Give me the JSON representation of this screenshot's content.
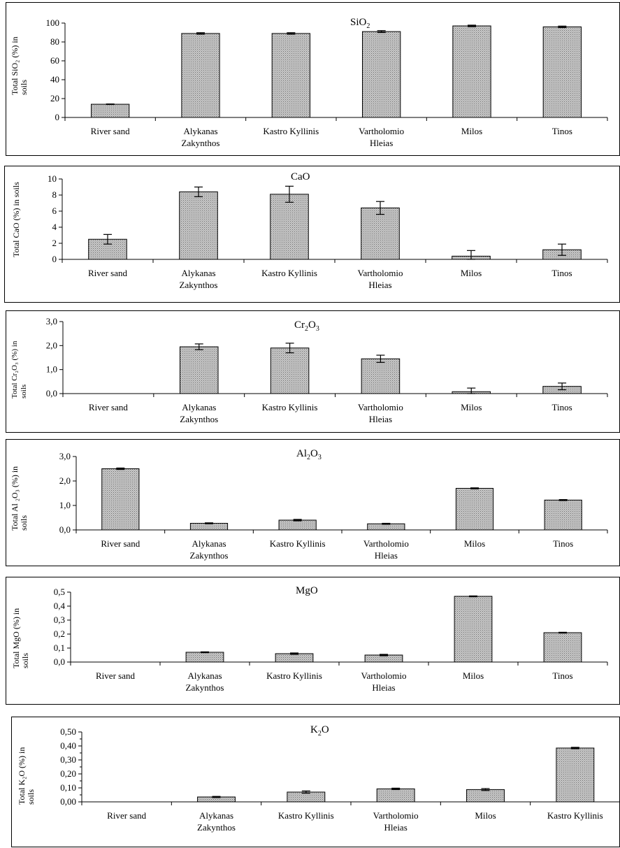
{
  "colors": {
    "bar_fill": "#c8c8c8",
    "bar_stroke": "#000000",
    "axis": "#000000"
  },
  "chart_data": [
    {
      "type": "bar",
      "title": "SiO2",
      "title_base": "SiO",
      "title_sub": "2",
      "ylabel_lines": [
        "Total  SiO₂ (%) in",
        "soils"
      ],
      "categories": [
        [
          "River sand"
        ],
        [
          "Alykanas",
          "Zakynthos"
        ],
        [
          "Kastro Kyllinis"
        ],
        [
          "Vartholomio",
          "Hleias"
        ],
        [
          "Milos"
        ],
        [
          "Tinos"
        ]
      ],
      "values": [
        14,
        89,
        89,
        91,
        97,
        96
      ],
      "errors": [
        0.3,
        0.8,
        0.8,
        1.0,
        0.8,
        0.8
      ],
      "ylim": [
        0,
        100
      ],
      "yticks": [
        0,
        20,
        40,
        60,
        80,
        100
      ],
      "ytick_labels": [
        "0",
        "20",
        "40",
        "60",
        "80",
        "100"
      ],
      "grid": false
    },
    {
      "type": "bar",
      "title": "CaO",
      "title_base": "CaO",
      "title_sub": "",
      "ylabel_lines": [
        "Total CaO (%) in soils"
      ],
      "categories": [
        [
          "River sand"
        ],
        [
          "Alykanas",
          "Zakynthos"
        ],
        [
          "Kastro Kyllinis"
        ],
        [
          "Vartholomio",
          "Hleias"
        ],
        [
          "Milos"
        ],
        [
          "Tinos"
        ]
      ],
      "values": [
        2.5,
        8.4,
        8.1,
        6.4,
        0.4,
        1.2
      ],
      "errors": [
        0.6,
        0.6,
        1.0,
        0.8,
        0.7,
        0.7
      ],
      "ylim": [
        0,
        10
      ],
      "yticks": [
        0,
        2,
        4,
        6,
        8,
        10
      ],
      "ytick_labels": [
        "0",
        "2",
        "4",
        "6",
        "8",
        "10"
      ],
      "grid": false
    },
    {
      "type": "bar",
      "title": "Cr2O3",
      "title_base": "Cr",
      "title_sub": "2",
      "title_rest": "O",
      "title_sub2": "3",
      "ylabel_lines": [
        "Total Cr₂O₃ (%) in",
        "soils"
      ],
      "categories": [
        [
          "River sand"
        ],
        [
          "Alykanas",
          "Zakynthos"
        ],
        [
          "Kastro Kyllinis"
        ],
        [
          "Vartholomio",
          "Hleias"
        ],
        [
          "Milos"
        ],
        [
          "Tinos"
        ]
      ],
      "values": [
        0.0,
        1.95,
        1.9,
        1.45,
        0.08,
        0.3
      ],
      "errors": [
        0,
        0.12,
        0.2,
        0.15,
        0.15,
        0.14
      ],
      "ylim": [
        0,
        3
      ],
      "yticks": [
        0,
        1,
        2,
        3
      ],
      "ytick_labels": [
        "0,0",
        "1,0",
        "2,0",
        "3,0"
      ],
      "grid": false
    },
    {
      "type": "bar",
      "title": "Al2O3",
      "title_base": "Al",
      "title_sub": "2",
      "title_rest": "O",
      "title_sub2": "3",
      "ylabel_lines": [
        "Total Al ₂O₃ (%) in",
        "soils"
      ],
      "categories": [
        [
          "River sand"
        ],
        [
          "Alykanas",
          "Zakynthos"
        ],
        [
          "Kastro Kyllinis"
        ],
        [
          "Vartholomio",
          "Hleias"
        ],
        [
          "Milos"
        ],
        [
          "Tinos"
        ]
      ],
      "values": [
        2.5,
        0.27,
        0.4,
        0.25,
        1.7,
        1.22
      ],
      "errors": [
        0.03,
        0.02,
        0.03,
        0.02,
        0.02,
        0.02
      ],
      "ylim": [
        0,
        3
      ],
      "yticks": [
        0,
        1,
        2,
        3
      ],
      "ytick_labels": [
        "0,0",
        "1,0",
        "2,0",
        "3,0"
      ],
      "grid": false
    },
    {
      "type": "bar",
      "title": "MgO",
      "title_base": "MgO",
      "title_sub": "",
      "ylabel_lines": [
        "Total MgO (%) in",
        "soils"
      ],
      "categories": [
        [
          "River sand"
        ],
        [
          "Alykanas",
          "Zakynthos"
        ],
        [
          "Kastro Kyllinis"
        ],
        [
          "Vartholomio",
          "Hleias"
        ],
        [
          "Milos"
        ],
        [
          "Tinos"
        ]
      ],
      "values": [
        0.0,
        0.07,
        0.06,
        0.05,
        0.47,
        0.21
      ],
      "errors": [
        0,
        0.003,
        0.005,
        0.005,
        0.003,
        0.003
      ],
      "ylim": [
        0,
        0.5
      ],
      "yticks": [
        0,
        0.1,
        0.2,
        0.3,
        0.4,
        0.5
      ],
      "ytick_labels": [
        "0,0",
        "0,1",
        "0,2",
        "0,3",
        "0,4",
        "0,5"
      ],
      "grid": false
    },
    {
      "type": "bar",
      "title": "K2O",
      "title_base": "K",
      "title_sub": "2",
      "title_rest": "O",
      "title_sub2": "",
      "ylabel_lines": [
        "Total K₂O (%) in",
        "soils"
      ],
      "categories": [
        [
          "River sand"
        ],
        [
          "Alykanas",
          "Zakynthos"
        ],
        [
          "Kastro Kyllinis"
        ],
        [
          "Vartholomio",
          "Hleias"
        ],
        [
          "Milos"
        ],
        [
          "Kastro Kyllinis"
        ]
      ],
      "values": [
        0.0,
        0.035,
        0.07,
        0.093,
        0.088,
        0.385
      ],
      "errors": [
        0,
        0.004,
        0.008,
        0.005,
        0.007,
        0.005
      ],
      "ylim": [
        0,
        0.5
      ],
      "yticks": [
        0,
        0.1,
        0.2,
        0.3,
        0.4,
        0.5
      ],
      "ytick_labels": [
        "0,00",
        "0,10",
        "0,20",
        "0,30",
        "0,40",
        "0,50"
      ],
      "extra_ticks": [
        0.05,
        0.15,
        0.25,
        0.35,
        0.45
      ],
      "grid": false
    }
  ]
}
